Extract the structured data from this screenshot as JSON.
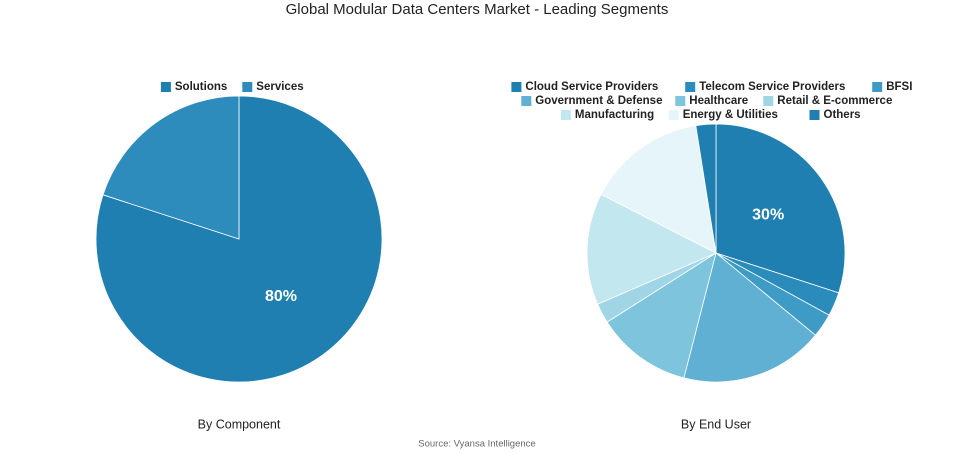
{
  "title": "Global Modular Data Centers Market - Leading Segments",
  "source": "Source: Vyansa Intelligence",
  "chart_data": [
    {
      "type": "pie",
      "xlabel": "By Component",
      "categories": [
        "Solutions",
        "Services"
      ],
      "values": [
        80,
        20
      ],
      "value_labels": [
        "80%",
        null
      ],
      "colors": [
        "#1f7fb0",
        "#2e8cbc"
      ]
    },
    {
      "type": "pie",
      "xlabel": "By End User",
      "categories": [
        "Cloud Service Providers",
        "Telecom Service Providers",
        "BFSI",
        "Government & Defense",
        "Healthcare",
        "Retail & E-commerce",
        "Manufacturing",
        "Energy & Utilities",
        "Others"
      ],
      "values": [
        30,
        3,
        3,
        18,
        12,
        2.5,
        14,
        15,
        2.5
      ],
      "value_labels": [
        "30%",
        null,
        null,
        null,
        null,
        null,
        null,
        null,
        null
      ],
      "colors": [
        "#1f7fb0",
        "#2b8cbb",
        "#3d9bc6",
        "#5fb0d2",
        "#7ec4dc",
        "#a0d5e6",
        "#c3e7ef",
        "#e6f5f9",
        "#1f7fb0"
      ]
    }
  ]
}
